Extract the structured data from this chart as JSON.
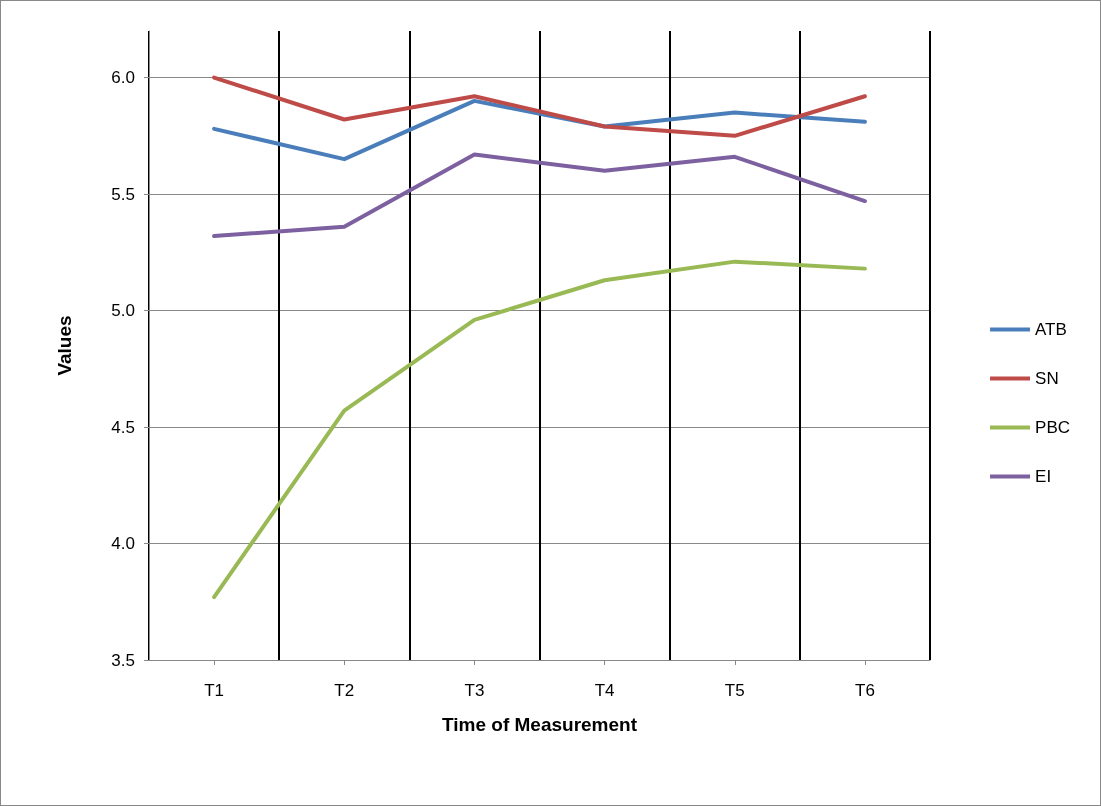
{
  "chart_data": {
    "type": "line",
    "xlabel": "Time of Measurement",
    "ylabel": "Values",
    "categories": [
      "T1",
      "T2",
      "T3",
      "T4",
      "T5",
      "T6"
    ],
    "series": [
      {
        "name": "ATB",
        "color": "#4a7ebb",
        "values": [
          5.78,
          5.65,
          5.9,
          5.79,
          5.85,
          5.81
        ]
      },
      {
        "name": "SN",
        "color": "#be4b48",
        "values": [
          6.0,
          5.82,
          5.92,
          5.79,
          5.75,
          5.92
        ]
      },
      {
        "name": "PBC",
        "color": "#98b954",
        "values": [
          3.77,
          4.57,
          4.96,
          5.13,
          5.21,
          5.18
        ]
      },
      {
        "name": "EI",
        "color": "#7d60a0",
        "values": [
          5.32,
          5.36,
          5.67,
          5.6,
          5.66,
          5.47
        ]
      }
    ],
    "ylim": [
      3.5,
      6.2
    ],
    "yticks": [
      {
        "value": 3.5,
        "label": "3.5"
      },
      {
        "value": 4,
        "label": "4.0"
      },
      {
        "value": 4.5,
        "label": "4.5"
      },
      {
        "value": 5,
        "label": "5.0"
      },
      {
        "value": 5.5,
        "label": "5.5"
      },
      {
        "value": 6,
        "label": "6.0"
      }
    ],
    "grid": true,
    "legend": "right",
    "marker": "none",
    "line_style": "solid"
  }
}
